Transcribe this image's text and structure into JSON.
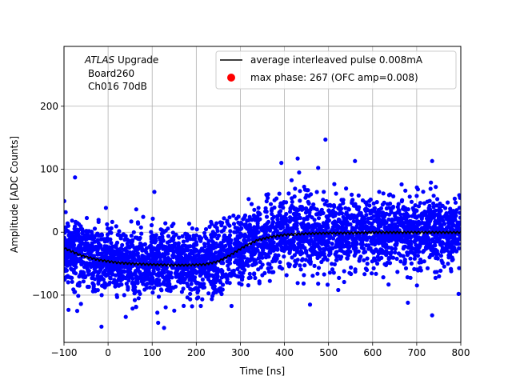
{
  "chart_data": {
    "type": "scatter",
    "title": "",
    "xlabel": "Time [ns]",
    "ylabel": "Amplitude [ADC Counts]",
    "xlim": [
      -100,
      800
    ],
    "ylim": [
      -175,
      295
    ],
    "x_ticks": [
      -100,
      0,
      100,
      200,
      300,
      400,
      500,
      600,
      700,
      800
    ],
    "x_tick_labels": [
      "−100",
      "0",
      "100",
      "200",
      "300",
      "400",
      "500",
      "600",
      "700",
      "800"
    ],
    "y_ticks": [
      -100,
      0,
      100,
      200
    ],
    "y_tick_labels": [
      "−100",
      "0",
      "100",
      "200"
    ],
    "grid": true,
    "annotation": {
      "italic": "ATLAS",
      "rest": " Upgrade",
      "line2": "Board260",
      "line3": "Ch016 70dB"
    },
    "legend": {
      "placement": "top-right",
      "entries": [
        {
          "label": "average interleaved pulse 0.008mA",
          "marker": "line",
          "color": "#000000"
        },
        {
          "label": "max phase: 267 (OFC amp=0.008)",
          "marker": "circle",
          "color": "#ff0000"
        }
      ]
    },
    "series": [
      {
        "name": "samples",
        "style": "dots",
        "color": "#0000ff",
        "x_range": [
          -100,
          800
        ],
        "spread": 38,
        "outliers": [
          {
            "x": -75,
            "y": 87
          },
          {
            "x": 105,
            "y": 64
          },
          {
            "x": 493,
            "y": 147
          },
          {
            "x": 430,
            "y": 117
          },
          {
            "x": 393,
            "y": 110
          },
          {
            "x": 560,
            "y": 113
          },
          {
            "x": 735,
            "y": 113
          },
          {
            "x": 127,
            "y": -152
          },
          {
            "x": -15,
            "y": -150
          },
          {
            "x": 458,
            "y": -115
          },
          {
            "x": 680,
            "y": -112
          },
          {
            "x": 735,
            "y": -132
          },
          {
            "x": 795,
            "y": -98
          }
        ]
      },
      {
        "name": "average interleaved pulse 0.008mA",
        "style": "line",
        "color": "#000000",
        "x": [
          -100,
          -60,
          -20,
          20,
          60,
          100,
          140,
          180,
          220,
          250,
          280,
          310,
          340,
          370,
          400,
          450,
          500,
          550,
          600,
          650,
          700,
          750,
          800
        ],
        "y": [
          -25,
          -37,
          -44,
          -48,
          -50,
          -51,
          -52,
          -52,
          -51,
          -46,
          -35,
          -22,
          -12,
          -7,
          -4,
          -2,
          -1,
          -1,
          0,
          0,
          0,
          0,
          0
        ]
      }
    ]
  }
}
